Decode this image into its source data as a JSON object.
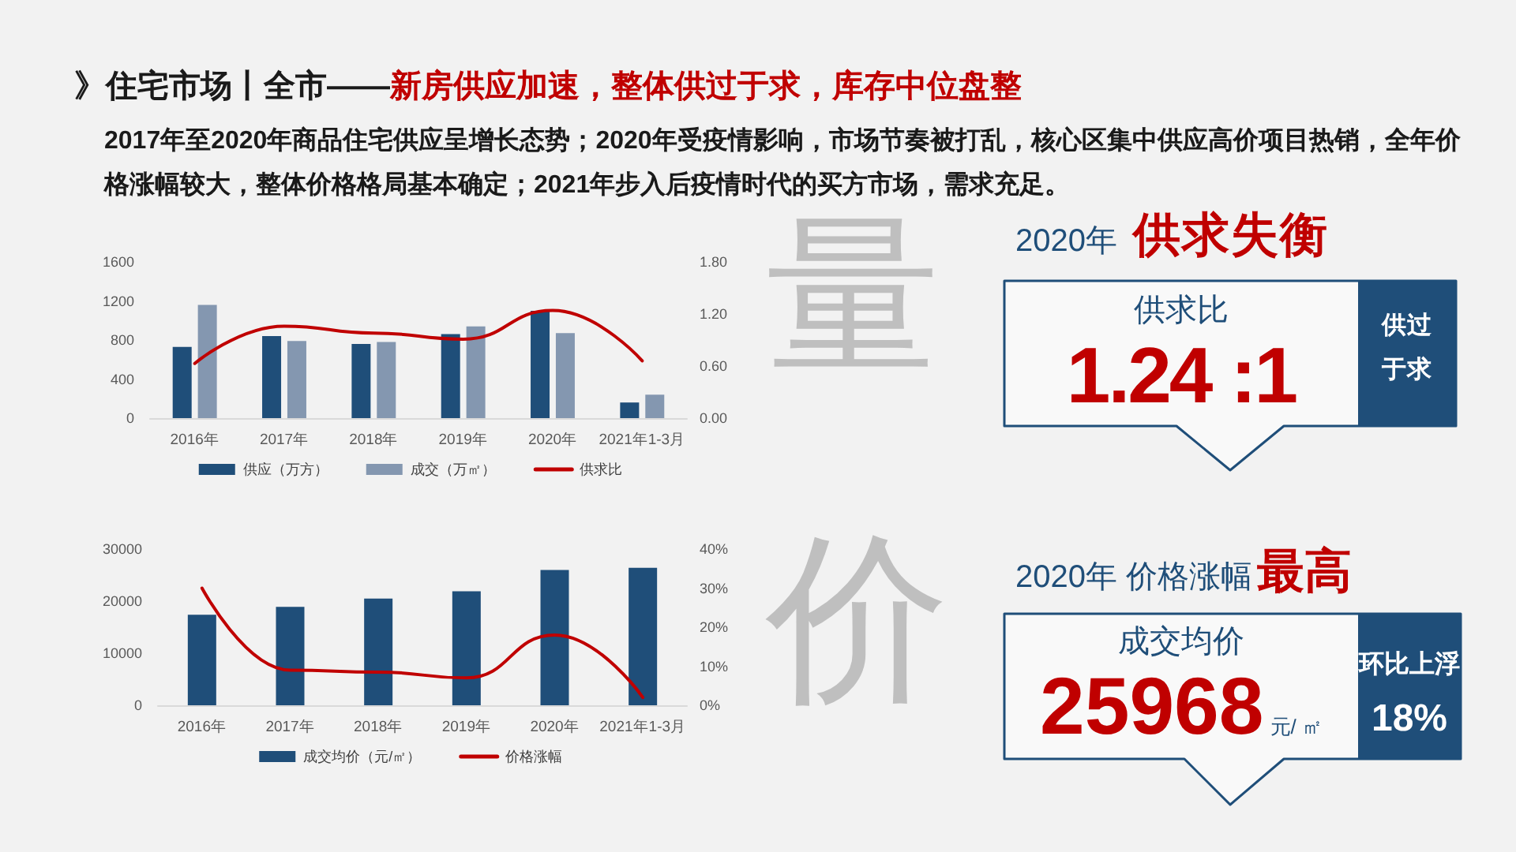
{
  "chart_data": [
    {
      "type": "other",
      "title": "》住宅市场丨全市——",
      "subtitle": "新房供应加速，整体供过于求，库存中位盘整",
      "annotations": [
        "2017年至2020年商品住宅供应呈增长态势；2020年受疫情影响，市场节奏被打乱，核心区集中供应高价项目热销，全年价格涨幅较大，整体价格格局基本确定；2021年步入后疫情时代的买方市场，需求充足。"
      ]
    },
    {
      "type": "bar",
      "categories": [
        "2016年",
        "2017年",
        "2018年",
        "2019年",
        "2020年",
        "2021年1-3月"
      ],
      "series": [
        {
          "name": "供应（万方）",
          "color": "#1f4e79",
          "values": [
            730,
            840,
            760,
            860,
            1100,
            160
          ]
        },
        {
          "name": "成交（万㎡）",
          "color": "#8497b0",
          "values": [
            1160,
            790,
            780,
            940,
            870,
            240
          ]
        },
        {
          "name": "供求比",
          "type": "line",
          "axis": "y2",
          "color": "#c00000",
          "values": [
            0.63,
            1.06,
            0.98,
            0.91,
            1.24,
            0.66
          ]
        }
      ],
      "ylim": [
        0,
        1600
      ],
      "yticks": [
        0,
        400,
        800,
        1200,
        1600
      ],
      "y2lim": [
        0,
        1.8
      ],
      "y2ticks": [
        {
          "value": 0,
          "label": "0.00"
        },
        {
          "value": 0.6,
          "label": "0.60"
        },
        {
          "value": 1.2,
          "label": "1.20"
        },
        {
          "value": 1.8,
          "label": "1.80"
        }
      ],
      "grid": false,
      "legend": "bottom",
      "marker": "none"
    },
    {
      "type": "other",
      "title": "2020年",
      "subtitle": "供求失衡",
      "annotations": [
        "量",
        "供求比",
        "1.24 :1",
        "供过于求"
      ]
    },
    {
      "type": "bar",
      "categories": [
        "2016年",
        "2017年",
        "2018年",
        "2019年",
        "2020年",
        "2021年1-3月"
      ],
      "series": [
        {
          "name": "成交均价（元/㎡）",
          "color": "#1f4e79",
          "values": [
            17400,
            18900,
            20500,
            21900,
            25968,
            26400
          ]
        },
        {
          "name": "价格涨幅",
          "type": "line",
          "axis": "y2",
          "color": "#c00000",
          "values": [
            30,
            9,
            8.5,
            7,
            18,
            2
          ]
        }
      ],
      "ylim": [
        0,
        30000
      ],
      "yticks": [
        0,
        10000,
        20000,
        30000
      ],
      "y2lim": [
        0,
        40
      ],
      "y2ticks": [
        {
          "value": 0,
          "label": "0%"
        },
        {
          "value": 10,
          "label": "10%"
        },
        {
          "value": 20,
          "label": "20%"
        },
        {
          "value": 30,
          "label": "30%"
        },
        {
          "value": 40,
          "label": "40%"
        }
      ],
      "grid": false,
      "legend": "bottom",
      "marker": "none"
    },
    {
      "type": "other",
      "title": "2020年 价格涨幅",
      "subtitle": "最高",
      "annotations": [
        "价",
        "成交均价",
        "25968",
        "元/ ㎡",
        "环比上浮",
        "18%"
      ]
    }
  ]
}
